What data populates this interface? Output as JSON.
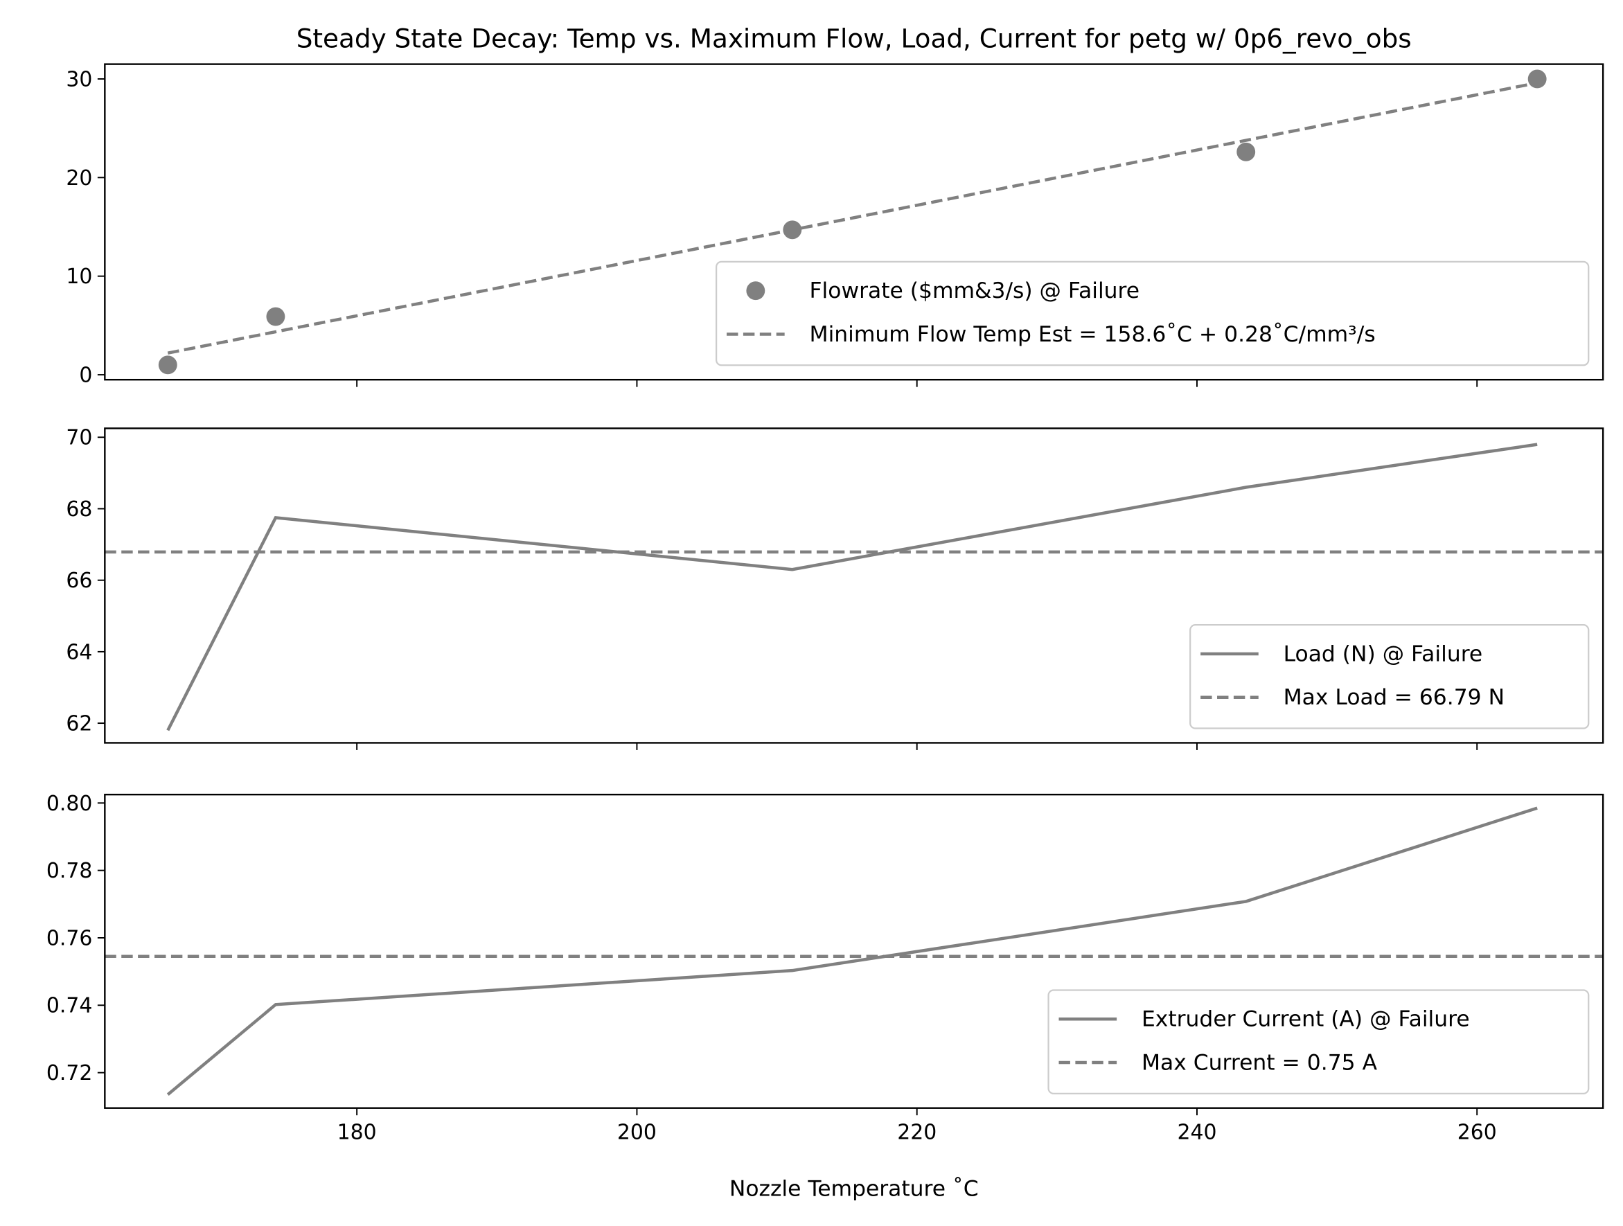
{
  "chart_data": [
    {
      "type": "scatter",
      "title": "Steady State Decay: Temp vs. Maximum Flow, Load, Current for petg w/ 0p6_revo_obs",
      "xlabel": "",
      "ylabel": "",
      "xlim": [
        162,
        269
      ],
      "ylim": [
        -0.5,
        31.5
      ],
      "yticks": [
        0,
        10,
        20,
        30
      ],
      "series": [
        {
          "name": "Flowrate ($mm&3/s) @ Failure",
          "kind": "scatter",
          "x": [
            166.5,
            174.2,
            211.1,
            243.5,
            264.3
          ],
          "y": [
            1.0,
            5.9,
            14.7,
            22.6,
            30.0
          ]
        },
        {
          "name": "Minimum Flow Temp Est = 158.6˚C + 0.28˚C/mm³/s",
          "kind": "dashed-line",
          "x": [
            166.5,
            264.3
          ],
          "y": [
            2.2,
            29.6
          ]
        }
      ],
      "legend": {
        "placement": "lower-right",
        "entries": [
          "Flowrate ($mm&3/s) @ Failure",
          "Minimum Flow Temp Est = 158.6˚C + 0.28˚C/mm³/s"
        ]
      }
    },
    {
      "type": "line",
      "xlim": [
        162,
        269
      ],
      "ylim": [
        61.45,
        70.25
      ],
      "yticks": [
        62,
        64,
        66,
        68,
        70
      ],
      "series": [
        {
          "name": "Load (N) @ Failure",
          "kind": "line",
          "x": [
            166.5,
            174.2,
            211.1,
            243.5,
            264.3
          ],
          "y": [
            61.8,
            67.75,
            66.3,
            68.6,
            69.8
          ]
        },
        {
          "name": "Max Load = 66.79 N",
          "kind": "hline",
          "y": 66.79
        }
      ],
      "legend": {
        "placement": "lower-right",
        "entries": [
          "Load (N) @ Failure",
          "Max Load = 66.79 N"
        ]
      }
    },
    {
      "type": "line",
      "xlabel": "Nozzle Temperature ˚C",
      "xlim": [
        162,
        269
      ],
      "xticks": [
        180,
        200,
        220,
        240,
        260
      ],
      "ylim": [
        0.7095,
        0.8025
      ],
      "yticks": [
        0.72,
        0.74,
        0.76,
        0.78,
        0.8
      ],
      "ytick_labels": [
        "0.72",
        "0.74",
        "0.76",
        "0.78",
        "0.80"
      ],
      "series": [
        {
          "name": "Extruder Current (A) @ Failure",
          "kind": "line",
          "x": [
            166.5,
            174.2,
            211.1,
            243.5,
            264.3
          ],
          "y": [
            0.7135,
            0.7402,
            0.7503,
            0.7708,
            0.7985
          ]
        },
        {
          "name": "Max Current = 0.75 A",
          "kind": "hline",
          "y": 0.7545
        }
      ],
      "legend": {
        "placement": "lower-right",
        "entries": [
          "Extruder Current (A) @ Failure",
          "Max Current = 0.75 A"
        ]
      }
    }
  ],
  "colors": {
    "series": "#808080",
    "axes": "#000000",
    "legend_border": "#cccccc"
  }
}
